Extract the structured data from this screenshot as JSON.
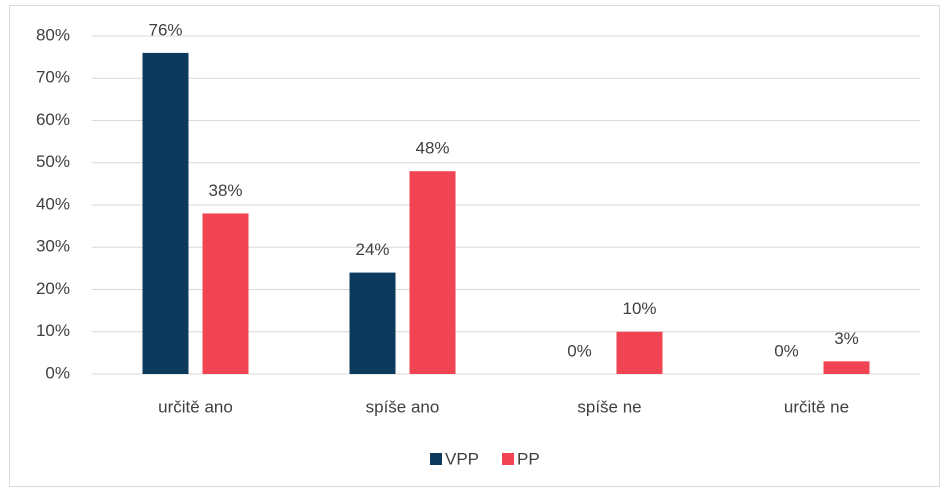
{
  "chart_data": {
    "type": "bar",
    "categories": [
      "určitě ano",
      "spíše ano",
      "spíše ne",
      "určitě ne"
    ],
    "series": [
      {
        "name": "VPP",
        "color": "#0b3a5c",
        "values": [
          76,
          24,
          0,
          0
        ],
        "value_labels": [
          "76%",
          "24%",
          "0%",
          "0%"
        ]
      },
      {
        "name": "PP",
        "color": "#f04452",
        "values": [
          38,
          48,
          10,
          3
        ],
        "value_labels": [
          "38%",
          "48%",
          "10%",
          "3%"
        ]
      }
    ],
    "ylim": [
      0,
      80
    ],
    "yticks": [
      {
        "value": 0,
        "label": "0%"
      },
      {
        "value": 10,
        "label": "10%"
      },
      {
        "value": 20,
        "label": "20%"
      },
      {
        "value": 30,
        "label": "30%"
      },
      {
        "value": 40,
        "label": "40%"
      },
      {
        "value": 50,
        "label": "50%"
      },
      {
        "value": 60,
        "label": "60%"
      },
      {
        "value": 70,
        "label": "70%"
      },
      {
        "value": 80,
        "label": "80%"
      }
    ],
    "grid": true,
    "legend": "bottom"
  }
}
